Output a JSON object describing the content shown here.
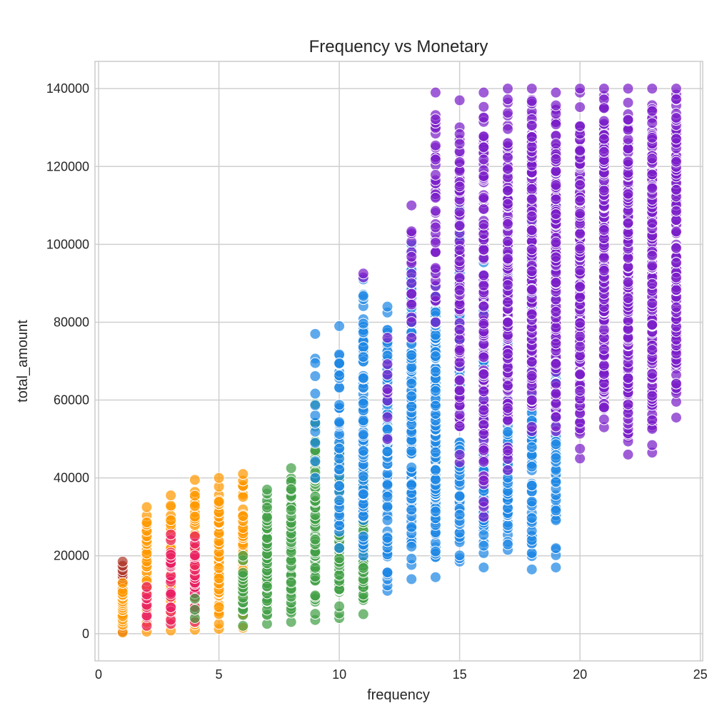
{
  "chart_data": {
    "type": "scatter",
    "title": "Frequency vs Monetary",
    "xlabel": "frequency",
    "ylabel": "total_amount",
    "xlim": [
      -0.15,
      25.1
    ],
    "ylim": [
      -7000,
      147000
    ],
    "xticks": [
      0,
      5,
      10,
      15,
      20,
      25
    ],
    "yticks": [
      0,
      20000,
      40000,
      60000,
      80000,
      100000,
      120000,
      140000
    ],
    "xtick_labels": [
      "0",
      "5",
      "10",
      "15",
      "20",
      "25"
    ],
    "ytick_labels": [
      "0",
      "20000",
      "40000",
      "60000",
      "80000",
      "100000",
      "120000",
      "140000"
    ],
    "grid": true,
    "legend": "none",
    "marker_opacity": 0.72,
    "groups": [
      {
        "color": "#b03a2e",
        "columns": [
          {
            "x": 1,
            "y": [
              500,
              18500
            ],
            "n": 40
          }
        ]
      },
      {
        "color": "#ff9800",
        "columns": [
          {
            "x": 1,
            "y": [
              300,
              13000
            ],
            "n": 25
          },
          {
            "x": 2,
            "y": [
              500,
              32500
            ],
            "n": 45
          },
          {
            "x": 3,
            "y": [
              800,
              35500
            ],
            "n": 50
          },
          {
            "x": 4,
            "y": [
              1000,
              39500
            ],
            "n": 55
          },
          {
            "x": 5,
            "y": [
              1200,
              40000
            ],
            "n": 60
          },
          {
            "x": 6,
            "y": [
              1500,
              41000
            ],
            "n": 50
          }
        ]
      },
      {
        "color": "#e91e63",
        "columns": [
          {
            "x": 2,
            "y": [
              2000,
              12000
            ],
            "n": 8
          },
          {
            "x": 3,
            "y": [
              2500,
              25500
            ],
            "n": 22
          },
          {
            "x": 4,
            "y": [
              3000,
              25000
            ],
            "n": 22
          }
        ]
      },
      {
        "color": "#43a047",
        "columns": [
          {
            "x": 4,
            "y": [
              4000,
              9000
            ],
            "n": 3
          },
          {
            "x": 6,
            "y": [
              2000,
              20000
            ],
            "n": 18
          },
          {
            "x": 7,
            "y": [
              2500,
              37000
            ],
            "n": 60
          },
          {
            "x": 8,
            "y": [
              3000,
              42500
            ],
            "n": 65
          },
          {
            "x": 9,
            "y": [
              3500,
              59000
            ],
            "n": 70
          },
          {
            "x": 10,
            "y": [
              4000,
              48500
            ],
            "n": 70
          },
          {
            "x": 11,
            "y": [
              5000,
              42000
            ],
            "n": 60
          }
        ]
      },
      {
        "color": "#1e88e5",
        "columns": [
          {
            "x": 9,
            "y": [
              40000,
              77000
            ],
            "n": 12
          },
          {
            "x": 10,
            "y": [
              22000,
              79000
            ],
            "n": 45
          },
          {
            "x": 11,
            "y": [
              20000,
              91000
            ],
            "n": 90
          },
          {
            "x": 12,
            "y": [
              11000,
              84000
            ],
            "n": 110
          },
          {
            "x": 13,
            "y": [
              14000,
              100000
            ],
            "n": 130
          },
          {
            "x": 14,
            "y": [
              14500,
              93000
            ],
            "n": 130
          },
          {
            "x": 15,
            "y": [
              18500,
              109000
            ],
            "n": 140
          },
          {
            "x": 16,
            "y": [
              17000,
              98000
            ],
            "n": 140
          },
          {
            "x": 17,
            "y": [
              21500,
              92000
            ],
            "n": 130
          },
          {
            "x": 18,
            "y": [
              16500,
              118000
            ],
            "n": 150
          },
          {
            "x": 19,
            "y": [
              17000,
              118000
            ],
            "n": 120
          }
        ]
      },
      {
        "color": "#7b1fc9",
        "columns": [
          {
            "x": 11,
            "y": [
              91500,
              92500
            ],
            "n": 2
          },
          {
            "x": 12,
            "y": [
              50000,
              76000
            ],
            "n": 8
          },
          {
            "x": 13,
            "y": [
              76000,
              110000
            ],
            "n": 18
          },
          {
            "x": 14,
            "y": [
              80000,
              139000
            ],
            "n": 40
          },
          {
            "x": 15,
            "y": [
              44000,
              137000
            ],
            "n": 90
          },
          {
            "x": 16,
            "y": [
              30000,
              139000
            ],
            "n": 120
          },
          {
            "x": 17,
            "y": [
              42000,
              140000
            ],
            "n": 140
          },
          {
            "x": 18,
            "y": [
              52000,
              140000
            ],
            "n": 150
          },
          {
            "x": 19,
            "y": [
              52000,
              139000
            ],
            "n": 150
          },
          {
            "x": 20,
            "y": [
              45000,
              140000
            ],
            "n": 200
          },
          {
            "x": 21,
            "y": [
              53000,
              140000
            ],
            "n": 190
          },
          {
            "x": 22,
            "y": [
              46000,
              140000
            ],
            "n": 170
          },
          {
            "x": 23,
            "y": [
              46500,
              140000
            ],
            "n": 170
          },
          {
            "x": 24,
            "y": [
              55500,
              140000
            ],
            "n": 150
          }
        ]
      }
    ]
  }
}
